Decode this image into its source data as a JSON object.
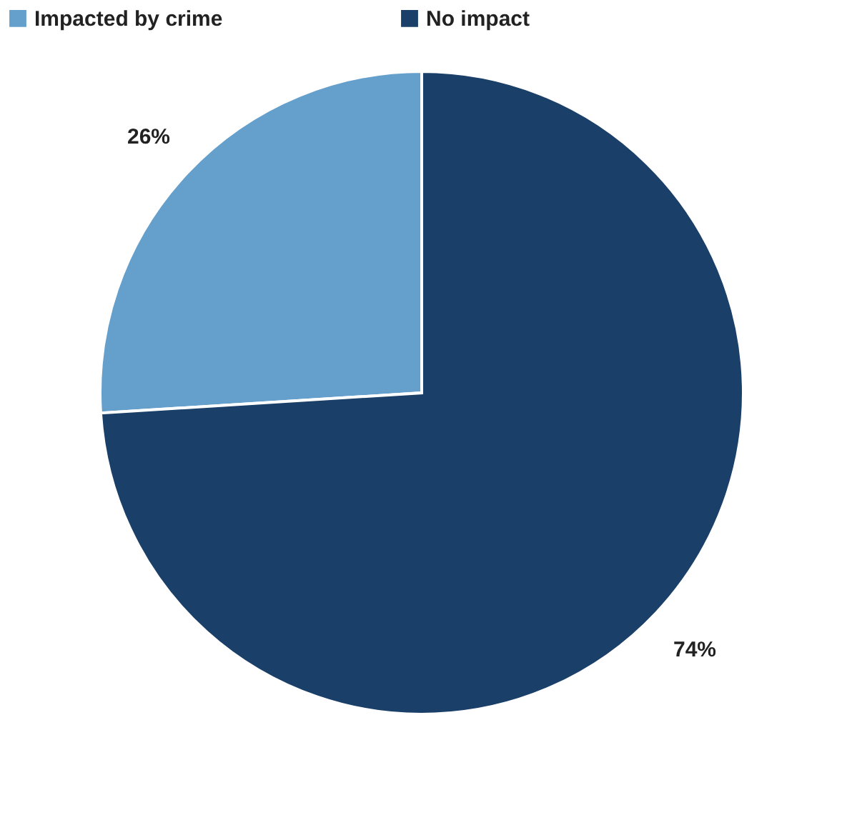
{
  "chart_data": {
    "type": "pie",
    "categories": [
      "Impacted by crime",
      "No impact"
    ],
    "values": [
      26,
      74
    ],
    "colors": [
      "#659fcb",
      "#1a3f68"
    ],
    "value_labels": [
      "26%",
      "74%"
    ],
    "legend": "top left"
  }
}
